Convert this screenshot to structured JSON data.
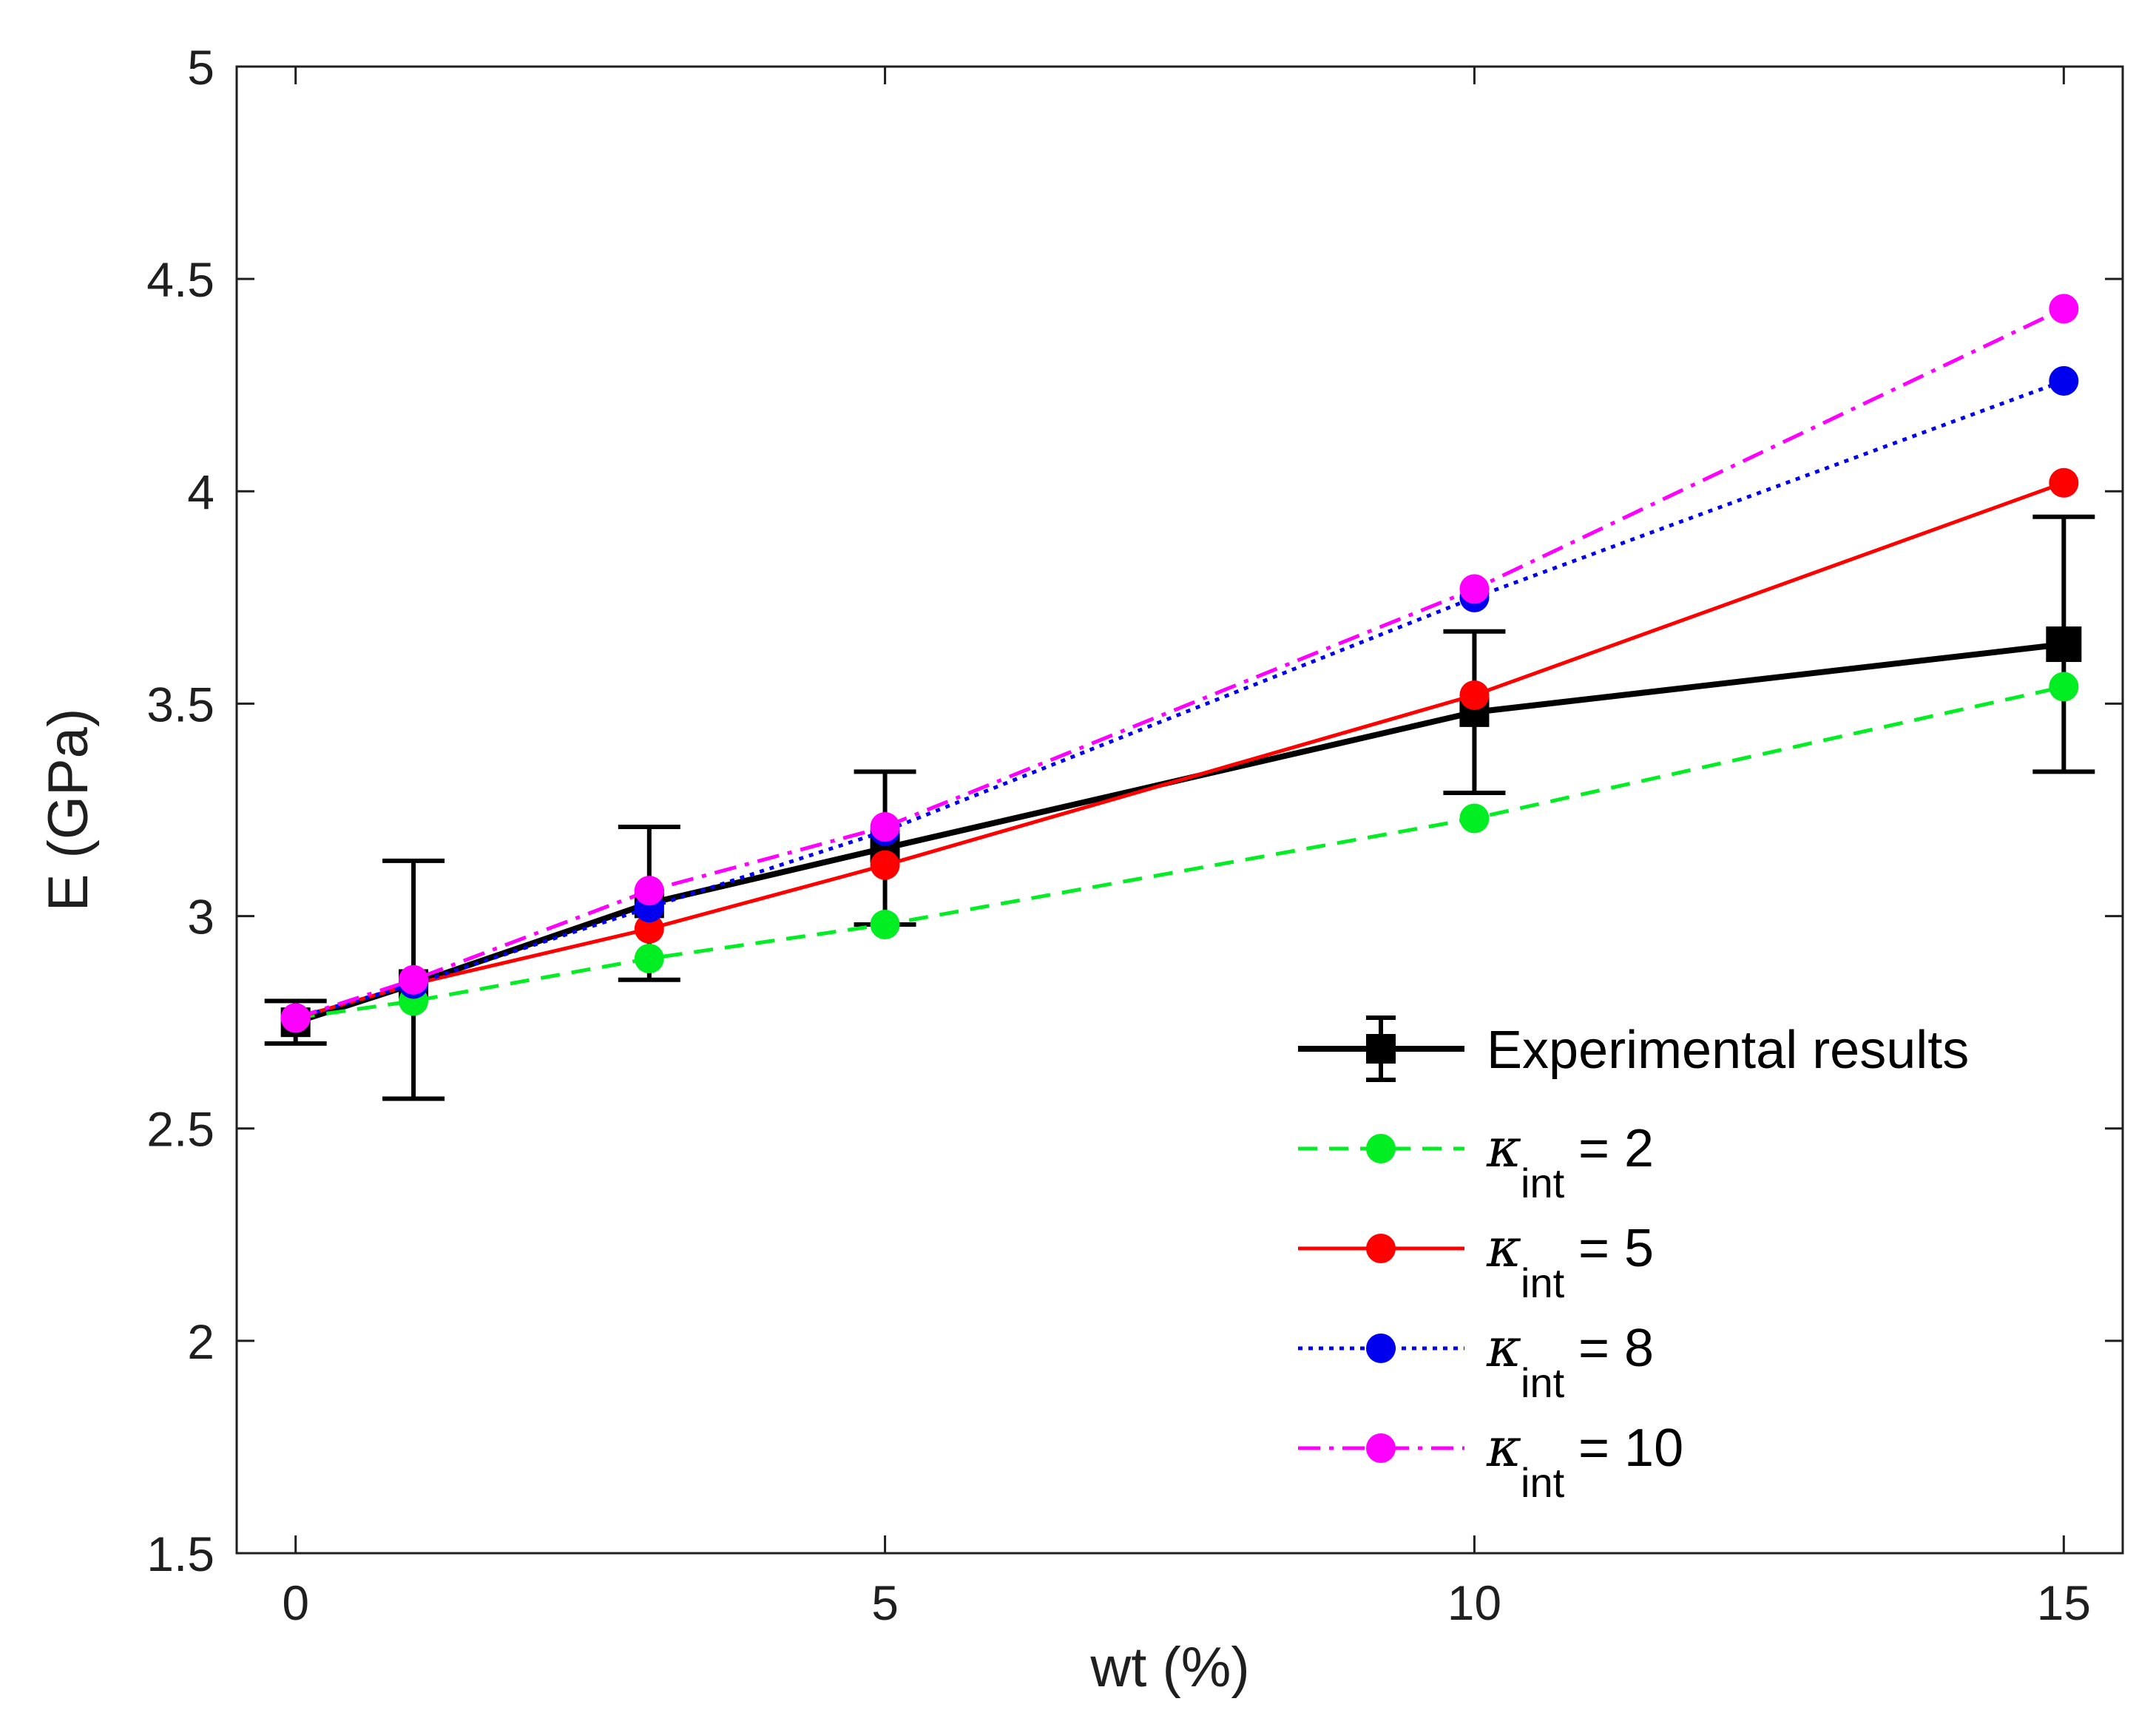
{
  "chart_data": {
    "type": "line",
    "title": "",
    "xlabel": "wt (%)",
    "ylabel": "E (GPa)",
    "xlim": [
      -0.5,
      15.5
    ],
    "ylim": [
      1.5,
      5
    ],
    "xticks": [
      0,
      5,
      10,
      15
    ],
    "yticks": [
      1.5,
      2,
      2.5,
      3,
      3.5,
      4,
      4.5,
      5
    ],
    "xtick_labels": [
      "0",
      "5",
      "10",
      "15"
    ],
    "ytick_labels": [
      "1.5",
      "2",
      "2.5",
      "3",
      "3.5",
      "4",
      "4.5",
      "5"
    ],
    "grid": false,
    "legend_position": "bottom-right",
    "x": [
      0,
      1,
      3,
      5,
      10,
      15
    ],
    "series": [
      {
        "id": "exp",
        "name": "Experimental results",
        "legend_prefix": "",
        "legend_sub": "",
        "legend_suffix": "Experimental results",
        "color": "#000000",
        "line_style": "solid",
        "marker": "square",
        "values": [
          2.75,
          2.84,
          3.03,
          3.16,
          3.48,
          3.64
        ],
        "error_low": [
          2.7,
          2.57,
          2.85,
          2.98,
          3.29,
          3.34
        ],
        "error_high": [
          2.8,
          3.13,
          3.21,
          3.34,
          3.67,
          3.94
        ]
      },
      {
        "id": "k2",
        "name": "κint = 2",
        "legend_prefix": "κ",
        "legend_sub": "int",
        "legend_suffix": " = 2",
        "color": "#00ee22",
        "line_style": "dashed",
        "marker": "circle",
        "values": [
          2.76,
          2.8,
          2.9,
          2.98,
          3.23,
          3.54
        ]
      },
      {
        "id": "k5",
        "name": "κint = 5",
        "legend_prefix": "κ",
        "legend_sub": "int",
        "legend_suffix": " = 5",
        "color": "#ff0000",
        "line_style": "solid",
        "marker": "circle",
        "values": [
          2.76,
          2.84,
          2.97,
          3.12,
          3.52,
          4.02
        ]
      },
      {
        "id": "k8",
        "name": "κint = 8",
        "legend_prefix": "κ",
        "legend_sub": "int",
        "legend_suffix": " = 8",
        "color": "#0000ee",
        "line_style": "dotted",
        "marker": "circle",
        "values": [
          2.76,
          2.84,
          3.02,
          3.2,
          3.75,
          4.26
        ]
      },
      {
        "id": "k10",
        "name": "κint = 10",
        "legend_prefix": "κ",
        "legend_sub": "int",
        "legend_suffix": " = 10",
        "color": "#ff00ff",
        "line_style": "dashdot",
        "marker": "circle",
        "values": [
          2.76,
          2.85,
          3.06,
          3.21,
          3.77,
          4.43
        ]
      }
    ]
  }
}
